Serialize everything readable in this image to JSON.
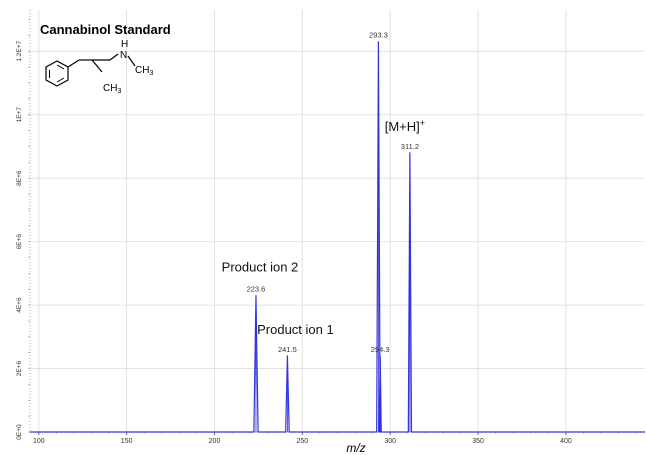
{
  "chart_data": {
    "type": "line",
    "title": "Cannabinol Standard",
    "xlabel": "m/z",
    "ylabel": "",
    "xlim": [
      95,
      445
    ],
    "ylim": [
      0,
      13300000
    ],
    "grid": true,
    "x_ticks": [
      100,
      150,
      200,
      250,
      300,
      350,
      400
    ],
    "y_ticks": [
      {
        "value": 0,
        "label": "0E+0"
      },
      {
        "value": 2000000,
        "label": "2E+6"
      },
      {
        "value": 4000000,
        "label": "4E+6"
      },
      {
        "value": 6000000,
        "label": "6E+6"
      },
      {
        "value": 8000000,
        "label": "8E+6"
      },
      {
        "value": 10000000,
        "label": "1E+7"
      },
      {
        "value": 12000000,
        "label": "1.2E+7"
      }
    ],
    "series": [
      {
        "color": "#3333dd",
        "peaks": [
          {
            "mz": 223.6,
            "intensity": 4300000,
            "label": "223.6",
            "width": 1.2
          },
          {
            "mz": 241.5,
            "intensity": 2400000,
            "label": "241.5",
            "width": 1.0
          },
          {
            "mz": 293.3,
            "intensity": 12300000,
            "label": "293.3",
            "width": 1.0
          },
          {
            "mz": 294.3,
            "intensity": 2400000,
            "label": "294.3",
            "width": 0.6
          },
          {
            "mz": 311.2,
            "intensity": 8800000,
            "label": "311.2",
            "width": 0.9
          }
        ]
      }
    ],
    "annotations": [
      {
        "text": "Product ion 2",
        "mz": 223.6
      },
      {
        "text": "Product ion 1",
        "mz": 241.5
      },
      {
        "text": "[M+H]",
        "superscript": "+",
        "mz": 311.2
      }
    ]
  },
  "structure": {
    "atom_N": "N",
    "atom_H": "H",
    "group_top": "CH",
    "group_top_sub": "3",
    "group_bottom": "CH",
    "group_bottom_sub": "3"
  }
}
